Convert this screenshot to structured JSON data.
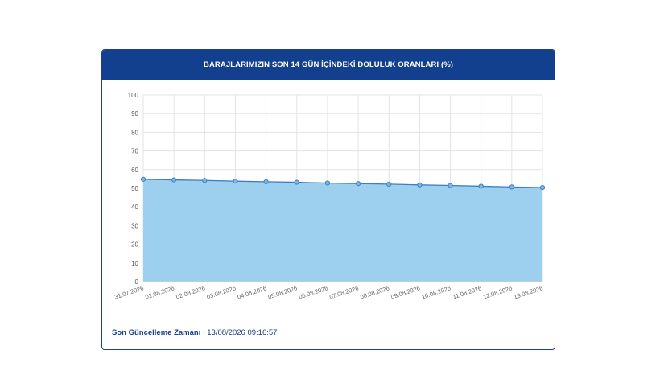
{
  "panel": {
    "title": "BARAJLARIMIZIN SON 14 GÜN İÇİNDEKİ DOLULUK ORANLARI (%)"
  },
  "footer": {
    "label": "Son Güncelleme Zamanı",
    "separator": " : ",
    "value": "13/08/2026 09:16:57"
  },
  "colors": {
    "header": "#12408e",
    "area_fill": "#9dd0ee",
    "line": "#3a7fc6",
    "grid": "#e3e3e3"
  },
  "chart_data": {
    "type": "area",
    "title": "BARAJLARIMIZIN SON 14 GÜN İÇİNDEKİ DOLULUK ORANLARI (%)",
    "xlabel": "",
    "ylabel": "",
    "ylim": [
      0,
      100
    ],
    "yticks": [
      0,
      10,
      20,
      30,
      40,
      50,
      60,
      70,
      80,
      90,
      100
    ],
    "grid": true,
    "legend": "none",
    "categories": [
      "31.07.2026",
      "01.08.2026",
      "02.08.2026",
      "03.08.2026",
      "04.08.2026",
      "05.08.2026",
      "06.08.2026",
      "07.08.2026",
      "08.08.2026",
      "09.08.2026",
      "10.08.2026",
      "11.08.2026",
      "12.08.2026",
      "13.08.2026"
    ],
    "series": [
      {
        "values": [
          54.8,
          54.5,
          54.2,
          53.8,
          53.5,
          53.2,
          52.8,
          52.5,
          52.2,
          51.8,
          51.5,
          51.1,
          50.7,
          50.4
        ]
      }
    ]
  }
}
